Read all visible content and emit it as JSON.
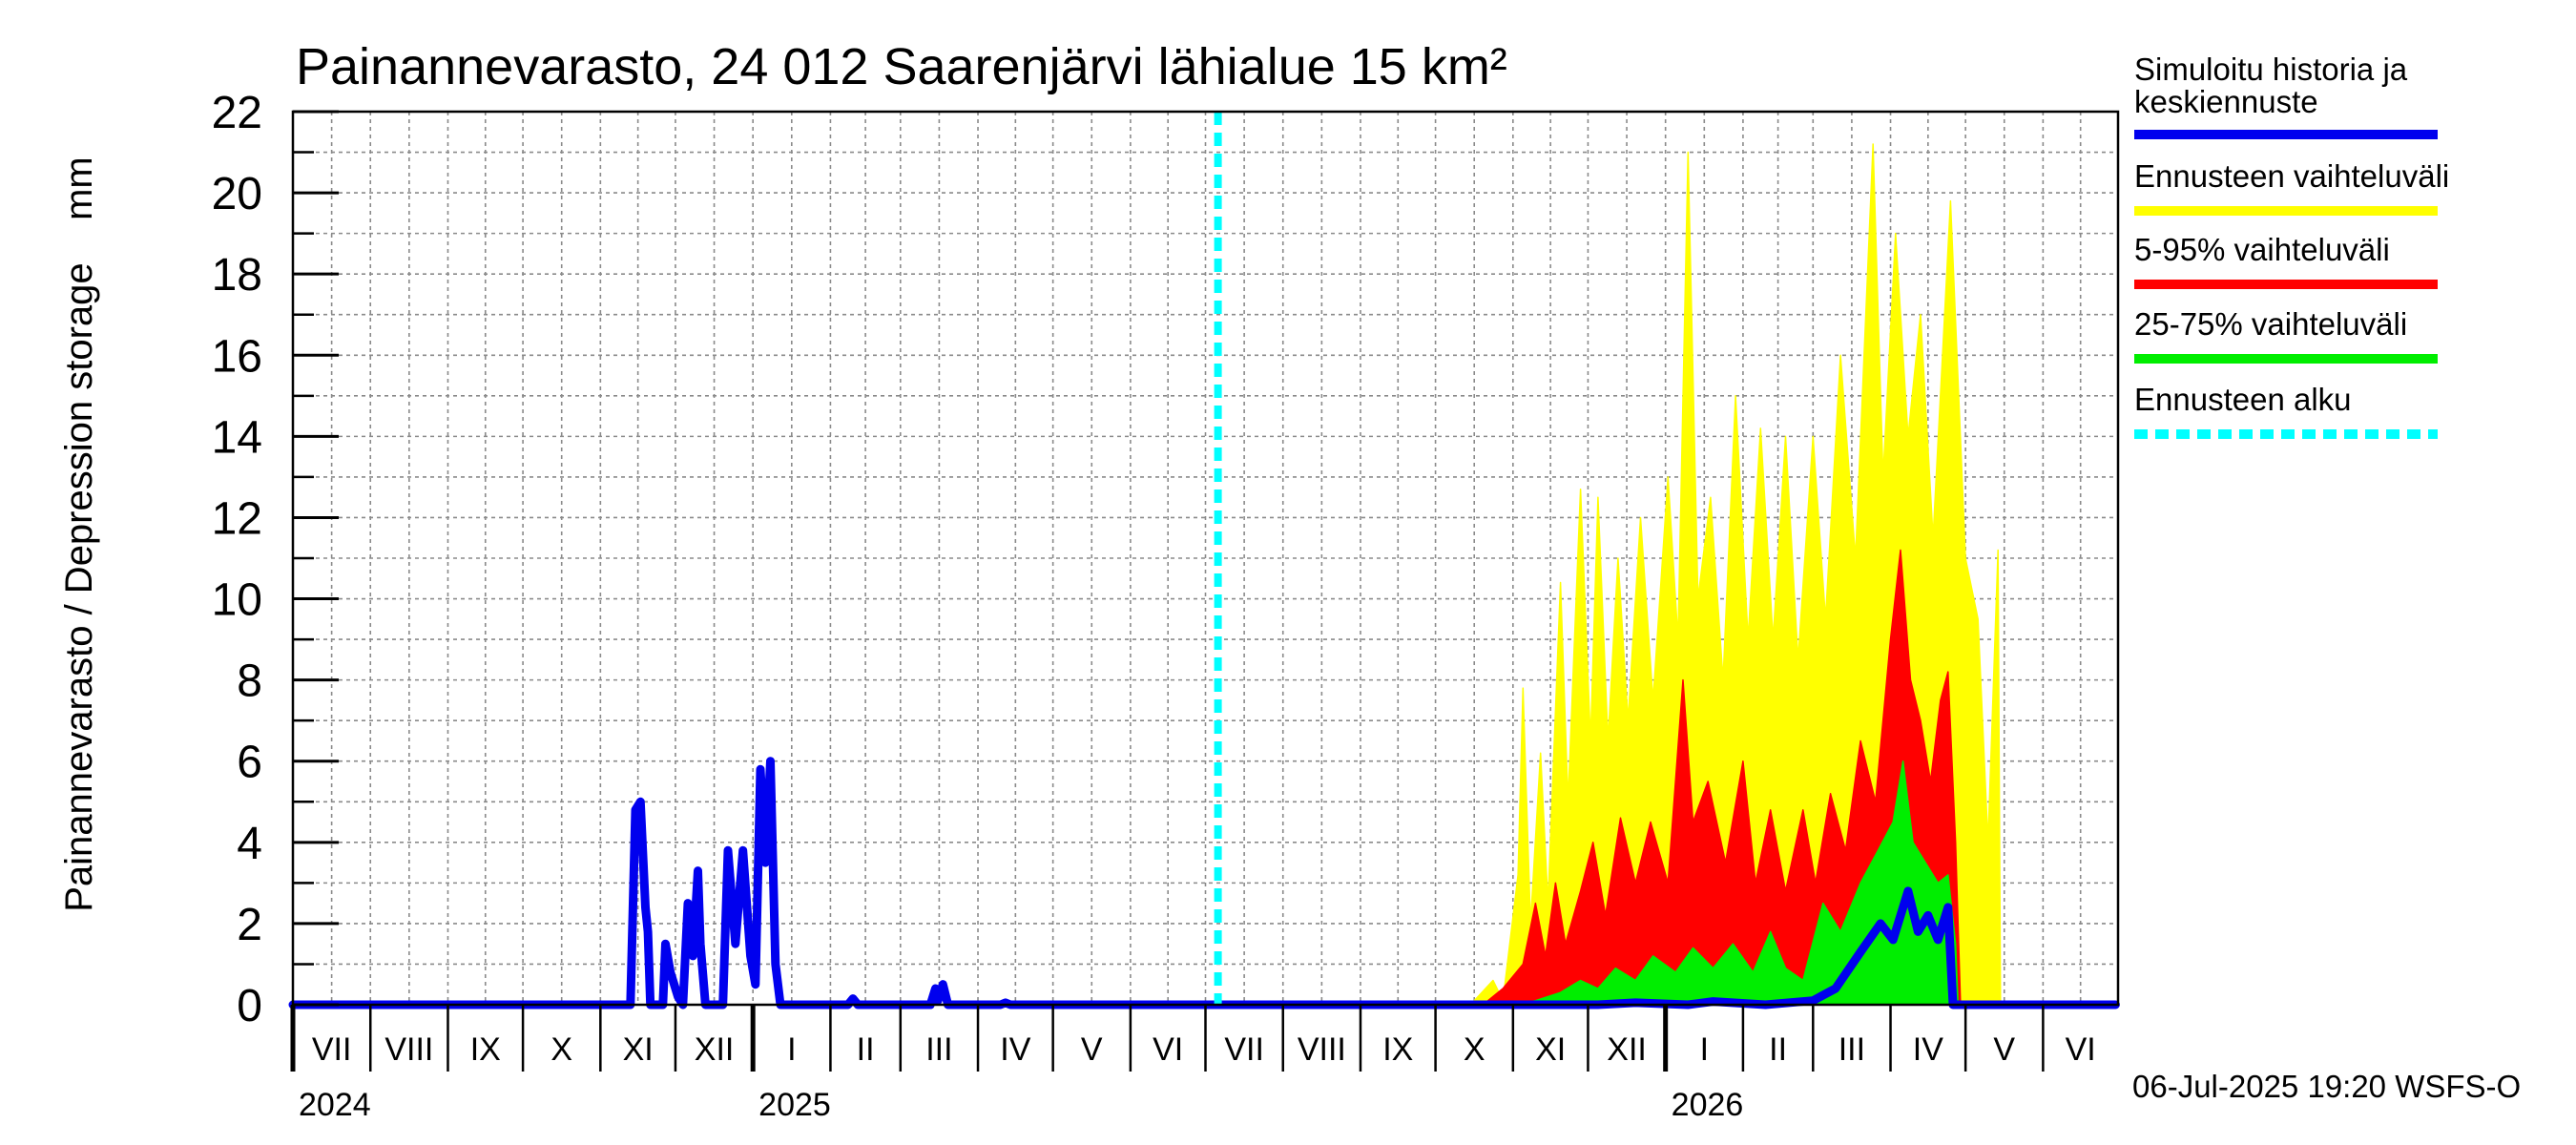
{
  "chart_data": {
    "type": "area",
    "title": "Painannevarasto, 24 012 Saarenjärvi lähialue 15 km²",
    "ylabel": "Painannevarasto / Depression storage    mm",
    "ylim": [
      0,
      22
    ],
    "yticks": [
      "0",
      "2",
      "4",
      "6",
      "8",
      "10",
      "12",
      "14",
      "16",
      "18",
      "20",
      "22"
    ],
    "x_range": [
      "2024-07-01",
      "2026-06-30"
    ],
    "month_labels": [
      "VII",
      "VIII",
      "IX",
      "X",
      "XI",
      "XII",
      "I",
      "II",
      "III",
      "IV",
      "V",
      "VI",
      "VII",
      "VIII",
      "IX",
      "X",
      "XI",
      "XII",
      "I",
      "II",
      "III",
      "IV",
      "V",
      "VI"
    ],
    "year_labels": [
      {
        "text": "2024",
        "date": "2024-07-01"
      },
      {
        "text": "2025",
        "date": "2025-01-01"
      },
      {
        "text": "2026",
        "date": "2026-01-01"
      }
    ],
    "grid": true,
    "legend_position": "right",
    "forecast_start": "2025-07-06",
    "footer": "06-Jul-2025 19:20 WSFS-O",
    "series": [
      {
        "key": "history",
        "name": "Simuloitu historia ja keskiennuste",
        "color": "#0000ee",
        "points": [
          [
            "2024-07-01",
            0
          ],
          [
            "2024-11-13",
            0
          ],
          [
            "2024-11-15",
            4.8
          ],
          [
            "2024-11-17",
            5.0
          ],
          [
            "2024-11-19",
            2.4
          ],
          [
            "2024-11-20",
            1.8
          ],
          [
            "2024-11-21",
            0
          ],
          [
            "2024-11-26",
            0
          ],
          [
            "2024-11-27",
            1.5
          ],
          [
            "2024-11-29",
            0.8
          ],
          [
            "2024-12-02",
            0.2
          ],
          [
            "2024-12-04",
            0
          ],
          [
            "2024-12-06",
            2.5
          ],
          [
            "2024-12-08",
            1.2
          ],
          [
            "2024-12-10",
            3.3
          ],
          [
            "2024-12-11",
            1.5
          ],
          [
            "2024-12-13",
            0
          ],
          [
            "2024-12-20",
            0
          ],
          [
            "2024-12-22",
            3.8
          ],
          [
            "2024-12-25",
            1.5
          ],
          [
            "2024-12-28",
            3.8
          ],
          [
            "2024-12-31",
            1.2
          ],
          [
            "2025-01-02",
            0.5
          ],
          [
            "2025-01-04",
            5.8
          ],
          [
            "2025-01-06",
            3.5
          ],
          [
            "2025-01-08",
            6.0
          ],
          [
            "2025-01-10",
            1.0
          ],
          [
            "2025-01-12",
            0
          ],
          [
            "2025-02-08",
            0
          ],
          [
            "2025-02-10",
            0.15
          ],
          [
            "2025-02-12",
            0
          ],
          [
            "2025-03-13",
            0
          ],
          [
            "2025-03-15",
            0.4
          ],
          [
            "2025-03-16",
            0.1
          ],
          [
            "2025-03-18",
            0.5
          ],
          [
            "2025-03-20",
            0
          ],
          [
            "2025-04-10",
            0
          ],
          [
            "2025-04-12",
            0.05
          ],
          [
            "2025-04-14",
            0
          ],
          [
            "2025-07-06",
            0
          ],
          [
            "2025-12-05",
            0
          ],
          [
            "2025-12-20",
            0.05
          ],
          [
            "2026-01-10",
            0
          ],
          [
            "2026-01-20",
            0.08
          ],
          [
            "2026-02-10",
            0
          ],
          [
            "2026-03-01",
            0.1
          ],
          [
            "2026-03-10",
            0.4
          ],
          [
            "2026-03-20",
            1.3
          ],
          [
            "2026-03-28",
            2.0
          ],
          [
            "2026-04-02",
            1.6
          ],
          [
            "2026-04-08",
            2.8
          ],
          [
            "2026-04-12",
            1.8
          ],
          [
            "2026-04-16",
            2.2
          ],
          [
            "2026-04-20",
            1.6
          ],
          [
            "2026-04-24",
            2.4
          ],
          [
            "2026-04-26",
            0
          ],
          [
            "2026-06-30",
            0
          ]
        ]
      },
      {
        "key": "band_5_95",
        "name": "5-95% vaihteluväli",
        "color": "#ff0000",
        "points": [
          [
            "2025-10-20",
            0
          ],
          [
            "2025-10-28",
            0.4
          ],
          [
            "2025-11-05",
            1.0
          ],
          [
            "2025-11-10",
            2.5
          ],
          [
            "2025-11-14",
            1.2
          ],
          [
            "2025-11-18",
            3.0
          ],
          [
            "2025-11-22",
            1.5
          ],
          [
            "2025-11-28",
            2.8
          ],
          [
            "2025-12-03",
            4.0
          ],
          [
            "2025-12-08",
            2.2
          ],
          [
            "2025-12-14",
            4.6
          ],
          [
            "2025-12-20",
            3.0
          ],
          [
            "2025-12-26",
            4.5
          ],
          [
            "2026-01-02",
            3.0
          ],
          [
            "2026-01-08",
            8.0
          ],
          [
            "2026-01-12",
            4.5
          ],
          [
            "2026-01-18",
            5.5
          ],
          [
            "2026-01-25",
            3.5
          ],
          [
            "2026-02-01",
            6.0
          ],
          [
            "2026-02-06",
            3.0
          ],
          [
            "2026-02-12",
            4.8
          ],
          [
            "2026-02-18",
            2.8
          ],
          [
            "2026-02-25",
            4.8
          ],
          [
            "2026-03-02",
            3.0
          ],
          [
            "2026-03-08",
            5.2
          ],
          [
            "2026-03-14",
            3.8
          ],
          [
            "2026-03-20",
            6.5
          ],
          [
            "2026-03-26",
            5.0
          ],
          [
            "2026-04-01",
            9.0
          ],
          [
            "2026-04-05",
            11.2
          ],
          [
            "2026-04-09",
            8.0
          ],
          [
            "2026-04-13",
            7.0
          ],
          [
            "2026-04-17",
            5.5
          ],
          [
            "2026-04-21",
            7.5
          ],
          [
            "2026-04-24",
            8.2
          ],
          [
            "2026-04-27",
            4.0
          ],
          [
            "2026-04-29",
            0
          ]
        ]
      },
      {
        "key": "band_25_75",
        "name": "25-75% vaihteluväli",
        "color": "#00ee00",
        "points": [
          [
            "2025-11-01",
            0
          ],
          [
            "2025-11-10",
            0.1
          ],
          [
            "2025-11-20",
            0.3
          ],
          [
            "2025-11-28",
            0.6
          ],
          [
            "2025-12-05",
            0.4
          ],
          [
            "2025-12-12",
            0.9
          ],
          [
            "2025-12-20",
            0.6
          ],
          [
            "2025-12-27",
            1.2
          ],
          [
            "2026-01-05",
            0.8
          ],
          [
            "2026-01-12",
            1.4
          ],
          [
            "2026-01-20",
            0.9
          ],
          [
            "2026-01-28",
            1.5
          ],
          [
            "2026-02-05",
            0.8
          ],
          [
            "2026-02-12",
            1.8
          ],
          [
            "2026-02-18",
            0.9
          ],
          [
            "2026-02-25",
            0.6
          ],
          [
            "2026-03-05",
            2.5
          ],
          [
            "2026-03-12",
            1.8
          ],
          [
            "2026-03-20",
            3.0
          ],
          [
            "2026-03-27",
            3.8
          ],
          [
            "2026-04-02",
            4.5
          ],
          [
            "2026-04-06",
            6.0
          ],
          [
            "2026-04-10",
            4.0
          ],
          [
            "2026-04-15",
            3.5
          ],
          [
            "2026-04-20",
            3.0
          ],
          [
            "2026-04-24",
            3.2
          ],
          [
            "2026-04-27",
            1.5
          ],
          [
            "2026-04-28",
            0
          ]
        ]
      },
      {
        "key": "band_full",
        "name": "Ennusteen vaihteluväli",
        "color": "#ffff00",
        "points": [
          [
            "2025-10-15",
            0
          ],
          [
            "2025-10-24",
            0.6
          ],
          [
            "2025-10-28",
            0.1
          ],
          [
            "2025-11-03",
            3.2
          ],
          [
            "2025-11-05",
            7.8
          ],
          [
            "2025-11-08",
            2.0
          ],
          [
            "2025-11-12",
            6.2
          ],
          [
            "2025-11-15",
            2.5
          ],
          [
            "2025-11-20",
            10.4
          ],
          [
            "2025-11-23",
            5.0
          ],
          [
            "2025-11-28",
            12.7
          ],
          [
            "2025-12-02",
            6.5
          ],
          [
            "2025-12-05",
            12.5
          ],
          [
            "2025-12-09",
            6.5
          ],
          [
            "2025-12-13",
            11.0
          ],
          [
            "2025-12-17",
            7.0
          ],
          [
            "2025-12-22",
            12.0
          ],
          [
            "2025-12-27",
            7.5
          ],
          [
            "2026-01-02",
            13.0
          ],
          [
            "2026-01-06",
            9.0
          ],
          [
            "2026-01-10",
            21.0
          ],
          [
            "2026-01-14",
            10.0
          ],
          [
            "2026-01-19",
            12.5
          ],
          [
            "2026-01-24",
            8.0
          ],
          [
            "2026-01-29",
            15.0
          ],
          [
            "2026-02-03",
            9.0
          ],
          [
            "2026-02-08",
            14.2
          ],
          [
            "2026-02-13",
            9.0
          ],
          [
            "2026-02-18",
            14.0
          ],
          [
            "2026-02-23",
            8.5
          ],
          [
            "2026-03-01",
            14.0
          ],
          [
            "2026-03-06",
            9.5
          ],
          [
            "2026-03-12",
            16.0
          ],
          [
            "2026-03-18",
            11.0
          ],
          [
            "2026-03-25",
            21.2
          ],
          [
            "2026-03-29",
            13.0
          ],
          [
            "2026-04-03",
            19.0
          ],
          [
            "2026-04-08",
            14.0
          ],
          [
            "2026-04-13",
            17.0
          ],
          [
            "2026-04-18",
            11.5
          ],
          [
            "2026-04-25",
            19.8
          ],
          [
            "2026-05-01",
            11.0
          ],
          [
            "2026-05-06",
            9.5
          ],
          [
            "2026-05-10",
            4.0
          ],
          [
            "2026-05-14",
            11.2
          ],
          [
            "2026-05-15",
            0
          ]
        ]
      },
      {
        "key": "forecast_start",
        "name": "Ennusteen alku",
        "color": "#00ffff"
      }
    ]
  }
}
